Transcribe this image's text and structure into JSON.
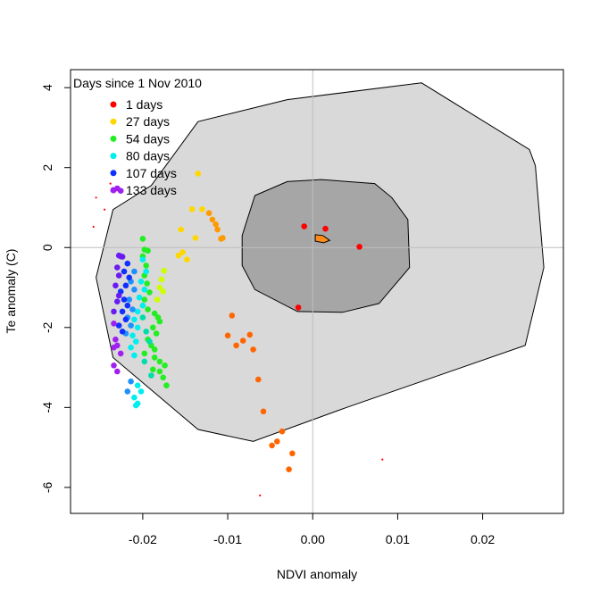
{
  "chart_data": {
    "type": "scatter",
    "xlabel": "NDVI anomaly",
    "ylabel": "Te anomaly (C)",
    "xlim": [
      -0.0285,
      0.0295
    ],
    "ylim": [
      -6.65,
      4.45
    ],
    "x_ticks": [
      -0.02,
      -0.01,
      0.0,
      0.01,
      0.02
    ],
    "x_tick_labels": [
      "-0.02",
      "-0.01",
      "0.00",
      "0.01",
      "0.02"
    ],
    "y_ticks": [
      -6,
      -4,
      -2,
      0,
      2,
      4
    ],
    "y_tick_labels": [
      "-6",
      "-4",
      "-2",
      "0",
      "2",
      "4"
    ],
    "reference_lines": {
      "x": 0,
      "y": 0,
      "color": "#bebebe"
    },
    "legend": {
      "title": "Days since 1 Nov 2010",
      "position": "top-left",
      "entries": [
        {
          "label": "1 days",
          "color": "#ff0000"
        },
        {
          "label": "27 days",
          "color": "#ffd700"
        },
        {
          "label": "54 days",
          "color": "#22ee22"
        },
        {
          "label": "80 days",
          "color": "#00eeee"
        },
        {
          "label": "107 days",
          "color": "#1030ff"
        },
        {
          "label": "133 days",
          "color": "#a020f0"
        }
      ]
    },
    "regions": [
      {
        "fill": "#d9d9d9",
        "points": [
          [
            -0.019,
            1.55
          ],
          [
            -0.0135,
            3.15
          ],
          [
            -0.003,
            3.7
          ],
          [
            0.0128,
            4.12
          ],
          [
            0.0255,
            2.45
          ],
          [
            0.0262,
            2.05
          ],
          [
            0.0272,
            -0.5
          ],
          [
            0.025,
            -2.45
          ],
          [
            0.004,
            -4.0
          ],
          [
            -0.007,
            -4.85
          ],
          [
            -0.0135,
            -4.55
          ],
          [
            -0.0235,
            -2.75
          ],
          [
            -0.0255,
            -0.75
          ],
          [
            -0.0235,
            0.95
          ]
        ]
      },
      {
        "fill": "#a6a6a6",
        "points": [
          [
            -0.0068,
            1.3
          ],
          [
            -0.003,
            1.65
          ],
          [
            0.001,
            1.7
          ],
          [
            0.0073,
            1.6
          ],
          [
            0.0093,
            1.25
          ],
          [
            0.0112,
            0.7
          ],
          [
            0.0114,
            -0.5
          ],
          [
            0.0078,
            -1.4
          ],
          [
            0.0035,
            -1.62
          ],
          [
            -0.0018,
            -1.6
          ],
          [
            -0.0068,
            -1.05
          ],
          [
            -0.0083,
            -0.45
          ],
          [
            -0.0083,
            0.3
          ]
        ]
      },
      {
        "fill": "#ff8c1a",
        "points": [
          [
            0.0003,
            0.32
          ],
          [
            0.0012,
            0.3
          ],
          [
            0.002,
            0.18
          ],
          [
            0.0013,
            0.12
          ],
          [
            0.0003,
            0.16
          ]
        ]
      }
    ],
    "series": [
      {
        "color": "#ff0000",
        "points": [
          [
            -0.001,
            0.53
          ],
          [
            0.0015,
            0.47
          ],
          [
            0.0055,
            0.02
          ],
          [
            -0.0017,
            -1.5
          ]
        ]
      },
      {
        "color": "#ff6600",
        "points": [
          [
            -0.0095,
            -1.7
          ],
          [
            -0.01,
            -2.2
          ],
          [
            -0.009,
            -2.45
          ],
          [
            -0.0082,
            -2.33
          ],
          [
            -0.0074,
            -2.18
          ],
          [
            -0.007,
            -2.55
          ],
          [
            -0.0064,
            -3.3
          ],
          [
            -0.0058,
            -4.1
          ],
          [
            -0.0036,
            -4.6
          ],
          [
            -0.0042,
            -4.85
          ],
          [
            -0.0048,
            -4.95
          ],
          [
            -0.0024,
            -5.15
          ],
          [
            -0.0028,
            -5.55
          ]
        ]
      },
      {
        "color": "#ff9900",
        "points": [
          [
            -0.0108,
            0.22
          ],
          [
            -0.0112,
            0.45
          ],
          [
            -0.0118,
            0.7
          ],
          [
            -0.0122,
            0.86
          ],
          [
            -0.0114,
            0.58
          ],
          [
            -0.0106,
            0.24
          ]
        ]
      },
      {
        "color": "#ffd700",
        "points": [
          [
            -0.0135,
            1.85
          ],
          [
            -0.0142,
            0.96
          ],
          [
            -0.013,
            0.96
          ],
          [
            -0.0138,
            0.24
          ],
          [
            -0.0155,
            0.45
          ],
          [
            -0.0153,
            -0.12
          ],
          [
            -0.0148,
            -0.3
          ],
          [
            -0.0158,
            -0.2
          ]
        ]
      },
      {
        "color": "#ccff00",
        "points": [
          [
            -0.0175,
            -0.58
          ],
          [
            -0.0178,
            -0.8
          ],
          [
            -0.018,
            -1.0
          ],
          [
            -0.0183,
            -1.3
          ],
          [
            -0.0176,
            -1.1
          ]
        ]
      },
      {
        "color": "#22ee22",
        "points": [
          [
            -0.02,
            0.22
          ],
          [
            -0.0198,
            -0.05
          ],
          [
            -0.0194,
            -0.08
          ],
          [
            -0.02,
            -0.22
          ],
          [
            -0.0196,
            -0.45
          ],
          [
            -0.0198,
            -0.7
          ],
          [
            -0.0195,
            -0.9
          ],
          [
            -0.0192,
            -1.12
          ],
          [
            -0.0198,
            -1.3
          ],
          [
            -0.0194,
            -1.55
          ],
          [
            -0.0186,
            -1.65
          ],
          [
            -0.0182,
            -1.75
          ],
          [
            -0.018,
            -1.85
          ],
          [
            -0.0188,
            -2.0
          ],
          [
            -0.0184,
            -2.15
          ],
          [
            -0.0194,
            -2.3
          ],
          [
            -0.019,
            -2.45
          ],
          [
            -0.0186,
            -2.55
          ],
          [
            -0.0198,
            -2.65
          ],
          [
            -0.0186,
            -2.75
          ],
          [
            -0.018,
            -2.85
          ],
          [
            -0.0174,
            -2.95
          ],
          [
            -0.0188,
            -3.05
          ],
          [
            -0.018,
            -3.1
          ],
          [
            -0.0176,
            -3.25
          ],
          [
            -0.0172,
            -3.45
          ]
        ]
      },
      {
        "color": "#00ddaa",
        "points": [
          [
            -0.02,
            -1.75
          ],
          [
            -0.0196,
            -2.1
          ],
          [
            -0.0192,
            -2.35
          ],
          [
            -0.0198,
            -2.85
          ],
          [
            -0.019,
            -3.2
          ]
        ]
      },
      {
        "color": "#00eeee",
        "points": [
          [
            -0.02,
            -0.3
          ],
          [
            -0.0196,
            -0.6
          ],
          [
            -0.0202,
            -0.85
          ],
          [
            -0.0198,
            -1.05
          ],
          [
            -0.0204,
            -1.25
          ],
          [
            -0.02,
            -1.45
          ],
          [
            -0.0206,
            -1.6
          ],
          [
            -0.021,
            -1.8
          ],
          [
            -0.0206,
            -2.0
          ],
          [
            -0.0212,
            -2.2
          ],
          [
            -0.0208,
            -2.35
          ],
          [
            -0.0214,
            -2.5
          ],
          [
            -0.021,
            -2.7
          ],
          [
            -0.0206,
            -3.45
          ],
          [
            -0.0202,
            -3.6
          ],
          [
            -0.021,
            -3.75
          ],
          [
            -0.0206,
            -3.9
          ],
          [
            -0.0208,
            -3.95
          ]
        ]
      },
      {
        "color": "#1e90ff",
        "points": [
          [
            -0.021,
            -0.6
          ],
          [
            -0.0214,
            -0.85
          ],
          [
            -0.021,
            -1.05
          ],
          [
            -0.0216,
            -1.3
          ],
          [
            -0.0212,
            -1.55
          ],
          [
            -0.0218,
            -1.75
          ],
          [
            -0.0214,
            -1.95
          ],
          [
            -0.022,
            -2.15
          ],
          [
            -0.0214,
            -3.35
          ],
          [
            -0.0218,
            -3.6
          ]
        ]
      },
      {
        "color": "#1030ff",
        "points": [
          [
            -0.0218,
            -0.4
          ],
          [
            -0.0222,
            -0.6
          ],
          [
            -0.0216,
            -0.75
          ],
          [
            -0.022,
            -0.95
          ],
          [
            -0.0226,
            -1.1
          ],
          [
            -0.0222,
            -1.3
          ],
          [
            -0.0218,
            -1.45
          ],
          [
            -0.0224,
            -1.6
          ],
          [
            -0.022,
            -1.8
          ],
          [
            -0.0228,
            -1.95
          ],
          [
            -0.0224,
            -2.1
          ]
        ]
      },
      {
        "color": "#6a1cf0",
        "points": [
          [
            -0.0228,
            -0.2
          ],
          [
            -0.0226,
            -0.22
          ],
          [
            -0.0224,
            -0.23
          ],
          [
            -0.023,
            -0.5
          ],
          [
            -0.0228,
            -0.7
          ],
          [
            -0.0232,
            -0.95
          ],
          [
            -0.0228,
            -1.2
          ],
          [
            -0.023,
            -1.35
          ],
          [
            -0.0234,
            -1.6
          ]
        ]
      },
      {
        "color": "#a020f0",
        "points": [
          [
            -0.0226,
            1.42
          ],
          [
            -0.023,
            1.48
          ],
          [
            -0.0234,
            -1.9
          ],
          [
            -0.0232,
            -2.3
          ],
          [
            -0.023,
            -2.45
          ],
          [
            -0.0226,
            -2.65
          ],
          [
            -0.0234,
            -2.95
          ],
          [
            -0.023,
            -3.1
          ],
          [
            -0.0234,
            -2.5
          ]
        ]
      }
    ],
    "small_points": [
      {
        "color": "#ff0000",
        "points": [
          [
            -0.0255,
            1.25
          ],
          [
            -0.0238,
            1.6
          ],
          [
            -0.0245,
            0.95
          ],
          [
            -0.0258,
            0.52
          ],
          [
            0.0082,
            -5.3
          ],
          [
            -0.0062,
            -6.2
          ]
        ]
      }
    ]
  }
}
